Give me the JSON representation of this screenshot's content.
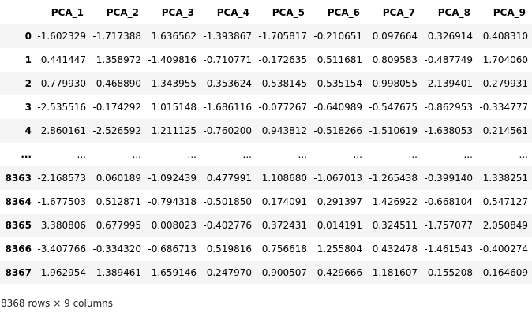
{
  "columns": [
    "PCA_1",
    "PCA_2",
    "PCA_3",
    "PCA_4",
    "PCA_5",
    "PCA_6",
    "PCA_7",
    "PCA_8",
    "PCA_9"
  ],
  "rows": [
    {
      "index": "0",
      "values": [
        "-1.602329",
        "-1.717388",
        "1.636562",
        "-1.393867",
        "-1.705817",
        "-0.210651",
        "0.097664",
        "0.326914",
        "0.408310"
      ]
    },
    {
      "index": "1",
      "values": [
        "0.441447",
        "1.358972",
        "-1.409816",
        "-0.710771",
        "-0.172635",
        "0.511681",
        "0.809583",
        "-0.487749",
        "1.704060"
      ]
    },
    {
      "index": "2",
      "values": [
        "-0.779930",
        "0.468890",
        "1.343955",
        "-0.353624",
        "0.538145",
        "0.535154",
        "0.998055",
        "2.139401",
        "0.279931"
      ]
    },
    {
      "index": "3",
      "values": [
        "-2.535516",
        "-0.174292",
        "1.015148",
        "-1.686116",
        "-0.077267",
        "-0.640989",
        "-0.547675",
        "-0.862953",
        "-0.334777"
      ]
    },
    {
      "index": "4",
      "values": [
        "2.860161",
        "-2.526592",
        "1.211125",
        "-0.760200",
        "0.943812",
        "-0.518266",
        "-1.510619",
        "-1.638053",
        "0.214561"
      ]
    },
    {
      "index": "...",
      "values": [
        "...",
        "...",
        "...",
        "...",
        "...",
        "...",
        "...",
        "...",
        "..."
      ]
    },
    {
      "index": "8363",
      "values": [
        "-2.168573",
        "0.060189",
        "-1.092439",
        "0.477991",
        "1.108680",
        "-1.067013",
        "-1.265438",
        "-0.399140",
        "1.338251"
      ]
    },
    {
      "index": "8364",
      "values": [
        "-1.677503",
        "0.512871",
        "-0.794318",
        "-0.501850",
        "0.174091",
        "0.291397",
        "1.426922",
        "-0.668104",
        "0.547127"
      ]
    },
    {
      "index": "8365",
      "values": [
        "3.380806",
        "0.677995",
        "0.008023",
        "-0.402776",
        "0.372431",
        "0.014191",
        "0.324511",
        "-1.757077",
        "2.050849"
      ]
    },
    {
      "index": "8366",
      "values": [
        "-3.407766",
        "-0.334320",
        "-0.686713",
        "0.519816",
        "0.756618",
        "1.255804",
        "0.432478",
        "-1.461543",
        "-0.400274"
      ]
    },
    {
      "index": "8367",
      "values": [
        "-1.962954",
        "-1.389461",
        "1.659146",
        "-0.247970",
        "-0.900507",
        "0.429666",
        "-1.181607",
        "0.155208",
        "-0.164609"
      ]
    }
  ],
  "shape_text": "8368 rows × 9 columns"
}
